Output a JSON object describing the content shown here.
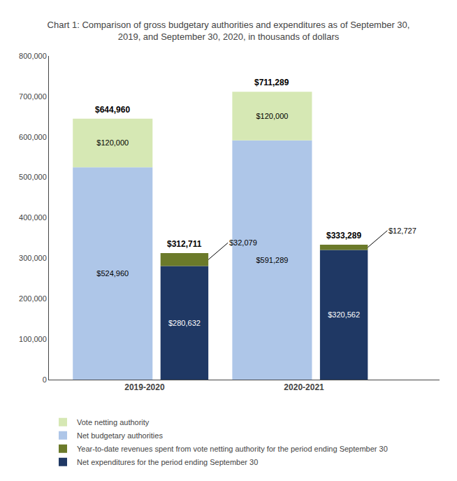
{
  "chart_data": {
    "type": "bar",
    "title": "Chart 1: Comparison of gross budgetary authorities and expenditures as of September 30,\n2019, and September 30, 2020, in thousands of dollars",
    "categories": [
      "2019-2020",
      "2020-2021"
    ],
    "stacked": true,
    "data_labels": true,
    "legend": "below",
    "grid": false,
    "ylim": [
      0,
      800000
    ],
    "yticks": [
      0,
      {
        "value": 100000,
        "label": "100,000"
      },
      {
        "value": 200000,
        "label": "200,000"
      },
      {
        "value": 300000,
        "label": "300,000"
      },
      {
        "value": 400000,
        "label": "400,000"
      },
      {
        "value": 500000,
        "label": "500,000"
      },
      {
        "value": 600000,
        "label": "600,000"
      },
      {
        "value": 700000,
        "label": "700,000"
      },
      {
        "value": 800000,
        "label": "800,000"
      }
    ],
    "stacks": [
      {
        "series": [
          {
            "name": "Net budgetary authorities",
            "color": "#aec6e8",
            "values": [
              524960,
              591289
            ],
            "value_labels": [
              "$524,960",
              "$591,289"
            ]
          },
          {
            "name": "Vote netting authority",
            "color": "#d6e8b4",
            "values": [
              120000,
              120000
            ],
            "value_labels": [
              "$120,000",
              "$120,000"
            ]
          }
        ],
        "totals": [
          644960,
          711289
        ],
        "total_labels": [
          "$644,960",
          "$711,289"
        ]
      },
      {
        "series": [
          {
            "name": "Net expenditures for the period ending September 30",
            "color": "#1f3864",
            "values": [
              280632,
              320562
            ],
            "value_labels": [
              "$280,632",
              "$320,562"
            ]
          },
          {
            "name": "Year-to-date revenues spent from vote netting authority for the period ending September 30",
            "color": "#6b7a2a",
            "values": [
              32079,
              12727
            ],
            "value_labels": [
              "$32,079",
              "$12,727"
            ]
          }
        ],
        "totals": [
          312711,
          333289
        ],
        "total_labels": [
          "$312,711",
          "$333,289"
        ]
      }
    ]
  }
}
